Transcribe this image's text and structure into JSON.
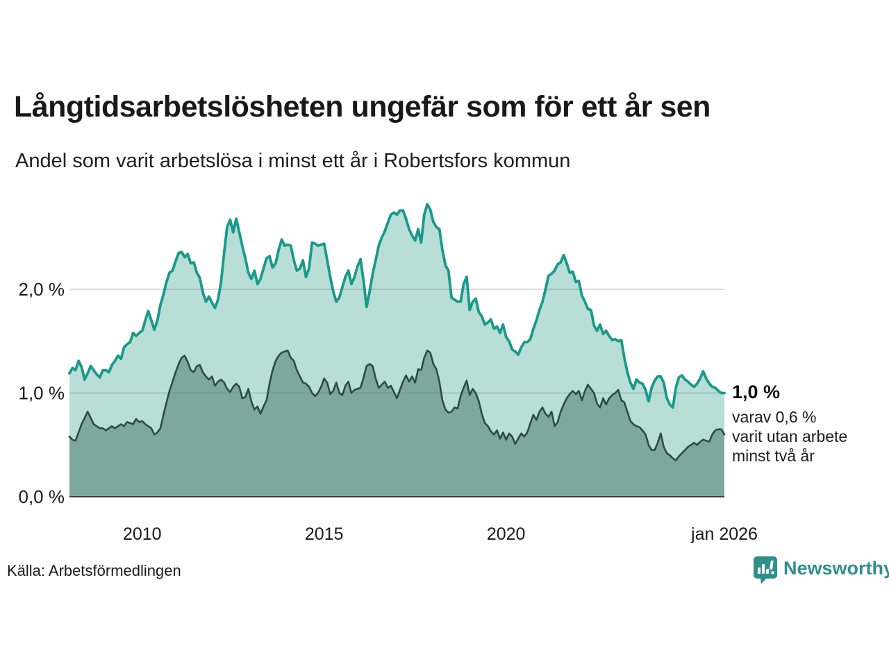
{
  "header": {
    "title": "Långtidsarbetslösheten ungefär som för ett år sen",
    "subtitle": "Andel som varit arbetslösa i minst ett år i Robertsfors kommun"
  },
  "annotation": {
    "value_label": "1,0 %",
    "lines": [
      "varav 0,6 %",
      "varit utan arbete",
      "minst två år"
    ]
  },
  "footer": {
    "source": "Källa: Arbetsförmedlingen",
    "brand": "Newsworthy"
  },
  "colors": {
    "series1_line": "#189a8a",
    "series1_fill": "#b8ded7",
    "series2_line": "#2d4a44",
    "series2_fill": "#7da8a1",
    "gridline": "#d9d9d9",
    "baseline": "#3c3c3c",
    "text": "#1a1a1a",
    "brand_teal": "#2f9089"
  },
  "chart_data": {
    "type": "area",
    "title": "Andel som varit arbetslösa i minst ett år i Robertsfors kommun",
    "unit": "%",
    "x_start": "2008-01",
    "x_end": "2026-01",
    "interval": "monthly",
    "ylim": [
      0,
      2.95
    ],
    "grid": true,
    "y_ticks": [
      {
        "value": 0,
        "label": "0,0 %"
      },
      {
        "value": 1,
        "label": "1,0 %"
      },
      {
        "value": 2,
        "label": "2,0 %"
      }
    ],
    "x_ticks": [
      {
        "month_index": 24,
        "label": "2010"
      },
      {
        "month_index": 84,
        "label": "2015"
      },
      {
        "month_index": 144,
        "label": "2020"
      },
      {
        "month_index": 216,
        "label": "jan 2026"
      }
    ],
    "series": [
      {
        "name": "Andel arbetslösa minst ett år",
        "last_value_label": "1,0 %",
        "values": [
          1.19,
          1.24,
          1.22,
          1.31,
          1.25,
          1.13,
          1.19,
          1.26,
          1.22,
          1.18,
          1.15,
          1.22,
          1.22,
          1.2,
          1.27,
          1.31,
          1.36,
          1.33,
          1.44,
          1.47,
          1.49,
          1.58,
          1.55,
          1.58,
          1.6,
          1.7,
          1.79,
          1.7,
          1.61,
          1.7,
          1.85,
          1.95,
          2.07,
          2.16,
          2.18,
          2.27,
          2.35,
          2.36,
          2.31,
          2.34,
          2.25,
          2.26,
          2.16,
          2.11,
          1.97,
          1.88,
          1.93,
          1.87,
          1.82,
          1.9,
          2.07,
          2.35,
          2.6,
          2.67,
          2.55,
          2.68,
          2.55,
          2.42,
          2.3,
          2.16,
          2.1,
          2.18,
          2.05,
          2.1,
          2.2,
          2.3,
          2.32,
          2.21,
          2.25,
          2.38,
          2.48,
          2.42,
          2.43,
          2.42,
          2.28,
          2.18,
          2.2,
          2.28,
          2.12,
          2.2,
          2.45,
          2.44,
          2.42,
          2.43,
          2.44,
          2.28,
          2.12,
          1.98,
          1.88,
          1.92,
          2.02,
          2.12,
          2.18,
          2.05,
          2.12,
          2.22,
          2.29,
          2.08,
          1.83,
          1.98,
          2.15,
          2.28,
          2.42,
          2.5,
          2.56,
          2.64,
          2.72,
          2.74,
          2.72,
          2.76,
          2.76,
          2.68,
          2.58,
          2.52,
          2.47,
          2.58,
          2.45,
          2.72,
          2.82,
          2.77,
          2.65,
          2.6,
          2.58,
          2.38,
          2.23,
          2.18,
          1.92,
          1.9,
          1.88,
          1.88,
          2.05,
          2.12,
          1.8,
          1.88,
          1.91,
          1.78,
          1.74,
          1.66,
          1.68,
          1.71,
          1.62,
          1.64,
          1.58,
          1.66,
          1.54,
          1.5,
          1.42,
          1.4,
          1.37,
          1.44,
          1.49,
          1.49,
          1.52,
          1.62,
          1.7,
          1.8,
          1.88,
          2.0,
          2.13,
          2.15,
          2.18,
          2.24,
          2.26,
          2.33,
          2.25,
          2.16,
          2.17,
          2.07,
          2.08,
          1.94,
          1.88,
          1.81,
          1.8,
          1.65,
          1.6,
          1.66,
          1.57,
          1.6,
          1.55,
          1.51,
          1.52,
          1.5,
          1.51,
          1.34,
          1.2,
          1.1,
          1.04,
          1.13,
          1.1,
          1.09,
          1.03,
          0.92,
          1.05,
          1.12,
          1.16,
          1.16,
          1.1,
          0.95,
          0.89,
          0.86,
          1.05,
          1.15,
          1.17,
          1.13,
          1.11,
          1.08,
          1.06,
          1.09,
          1.14,
          1.21,
          1.14,
          1.09,
          1.06,
          1.05,
          1.02,
          1.0,
          1.0
        ]
      },
      {
        "name": "Andel arbetslösa minst två år",
        "last_value_label": "0,6 %",
        "values": [
          0.58,
          0.55,
          0.54,
          0.62,
          0.7,
          0.76,
          0.82,
          0.76,
          0.7,
          0.68,
          0.66,
          0.66,
          0.64,
          0.66,
          0.68,
          0.66,
          0.68,
          0.7,
          0.68,
          0.72,
          0.71,
          0.7,
          0.75,
          0.72,
          0.73,
          0.7,
          0.68,
          0.66,
          0.6,
          0.62,
          0.66,
          0.79,
          0.91,
          1.02,
          1.11,
          1.2,
          1.28,
          1.34,
          1.36,
          1.3,
          1.22,
          1.2,
          1.26,
          1.27,
          1.2,
          1.16,
          1.13,
          1.16,
          1.07,
          1.11,
          1.13,
          1.1,
          1.04,
          1.01,
          1.06,
          1.09,
          1.06,
          0.95,
          0.96,
          1.04,
          0.92,
          0.84,
          0.87,
          0.8,
          0.87,
          0.93,
          1.09,
          1.22,
          1.31,
          1.36,
          1.39,
          1.4,
          1.41,
          1.34,
          1.31,
          1.22,
          1.16,
          1.1,
          1.09,
          1.06,
          1.0,
          0.97,
          1.0,
          1.06,
          1.14,
          1.1,
          0.99,
          1.02,
          1.1,
          1.0,
          0.98,
          1.07,
          1.11,
          1.0,
          1.03,
          1.04,
          1.05,
          1.15,
          1.26,
          1.28,
          1.26,
          1.14,
          1.05,
          1.08,
          1.11,
          1.05,
          1.07,
          1.01,
          0.95,
          1.03,
          1.11,
          1.17,
          1.11,
          1.16,
          1.1,
          1.23,
          1.22,
          1.34,
          1.41,
          1.39,
          1.28,
          1.23,
          1.11,
          0.93,
          0.84,
          0.81,
          0.82,
          0.86,
          0.85,
          0.97,
          1.05,
          1.12,
          0.98,
          1.04,
          1.0,
          0.92,
          0.8,
          0.71,
          0.68,
          0.63,
          0.6,
          0.64,
          0.56,
          0.62,
          0.55,
          0.61,
          0.58,
          0.51,
          0.56,
          0.61,
          0.58,
          0.62,
          0.71,
          0.79,
          0.74,
          0.82,
          0.86,
          0.8,
          0.77,
          0.82,
          0.68,
          0.72,
          0.82,
          0.89,
          0.95,
          0.99,
          1.02,
          0.99,
          1.02,
          0.93,
          1.02,
          1.08,
          1.04,
          1.0,
          0.9,
          0.86,
          0.95,
          0.89,
          0.95,
          0.98,
          1.0,
          1.03,
          0.93,
          0.91,
          0.82,
          0.73,
          0.7,
          0.68,
          0.67,
          0.64,
          0.6,
          0.5,
          0.45,
          0.45,
          0.52,
          0.61,
          0.48,
          0.42,
          0.4,
          0.37,
          0.35,
          0.39,
          0.42,
          0.45,
          0.48,
          0.5,
          0.52,
          0.5,
          0.53,
          0.55,
          0.54,
          0.53,
          0.6,
          0.64,
          0.65,
          0.65,
          0.6
        ]
      }
    ]
  }
}
